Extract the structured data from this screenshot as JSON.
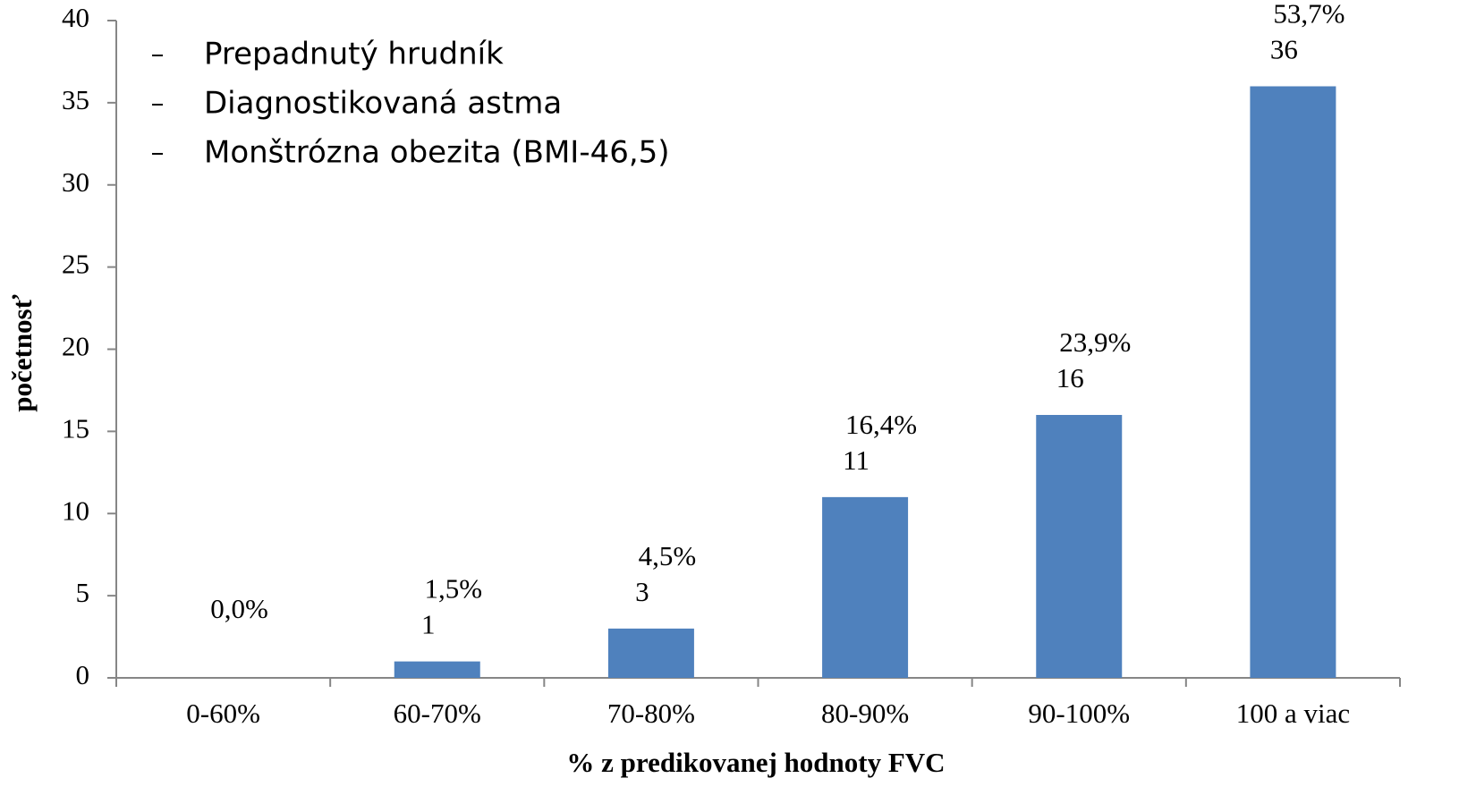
{
  "chart_data": {
    "type": "bar",
    "x_label": "% z predikovanej  hodnoty FVC",
    "y_label": "početnosť",
    "annotations": [
      "Prepadnutý hrudník",
      "Diagnostikovaná astma",
      "Monštrózna obezita (BMI-46,5)"
    ],
    "categories": [
      "0-60%",
      "60-70%",
      "70-80%",
      "80-90%",
      "90-100%",
      "100 a viac"
    ],
    "values": [
      0,
      1,
      3,
      11,
      16,
      36
    ],
    "value_labels": [
      null,
      "1",
      "3",
      "11",
      "16",
      "36"
    ],
    "percent_labels": [
      "0,0%",
      "1,5%",
      "4,5%",
      "16,4%",
      "23,9%",
      "53,7%"
    ],
    "color": "#4f81bd",
    "ylim": [
      0,
      40
    ],
    "yticks": [
      0,
      5,
      10,
      15,
      20,
      25,
      30,
      35,
      40
    ],
    "grid": false
  }
}
